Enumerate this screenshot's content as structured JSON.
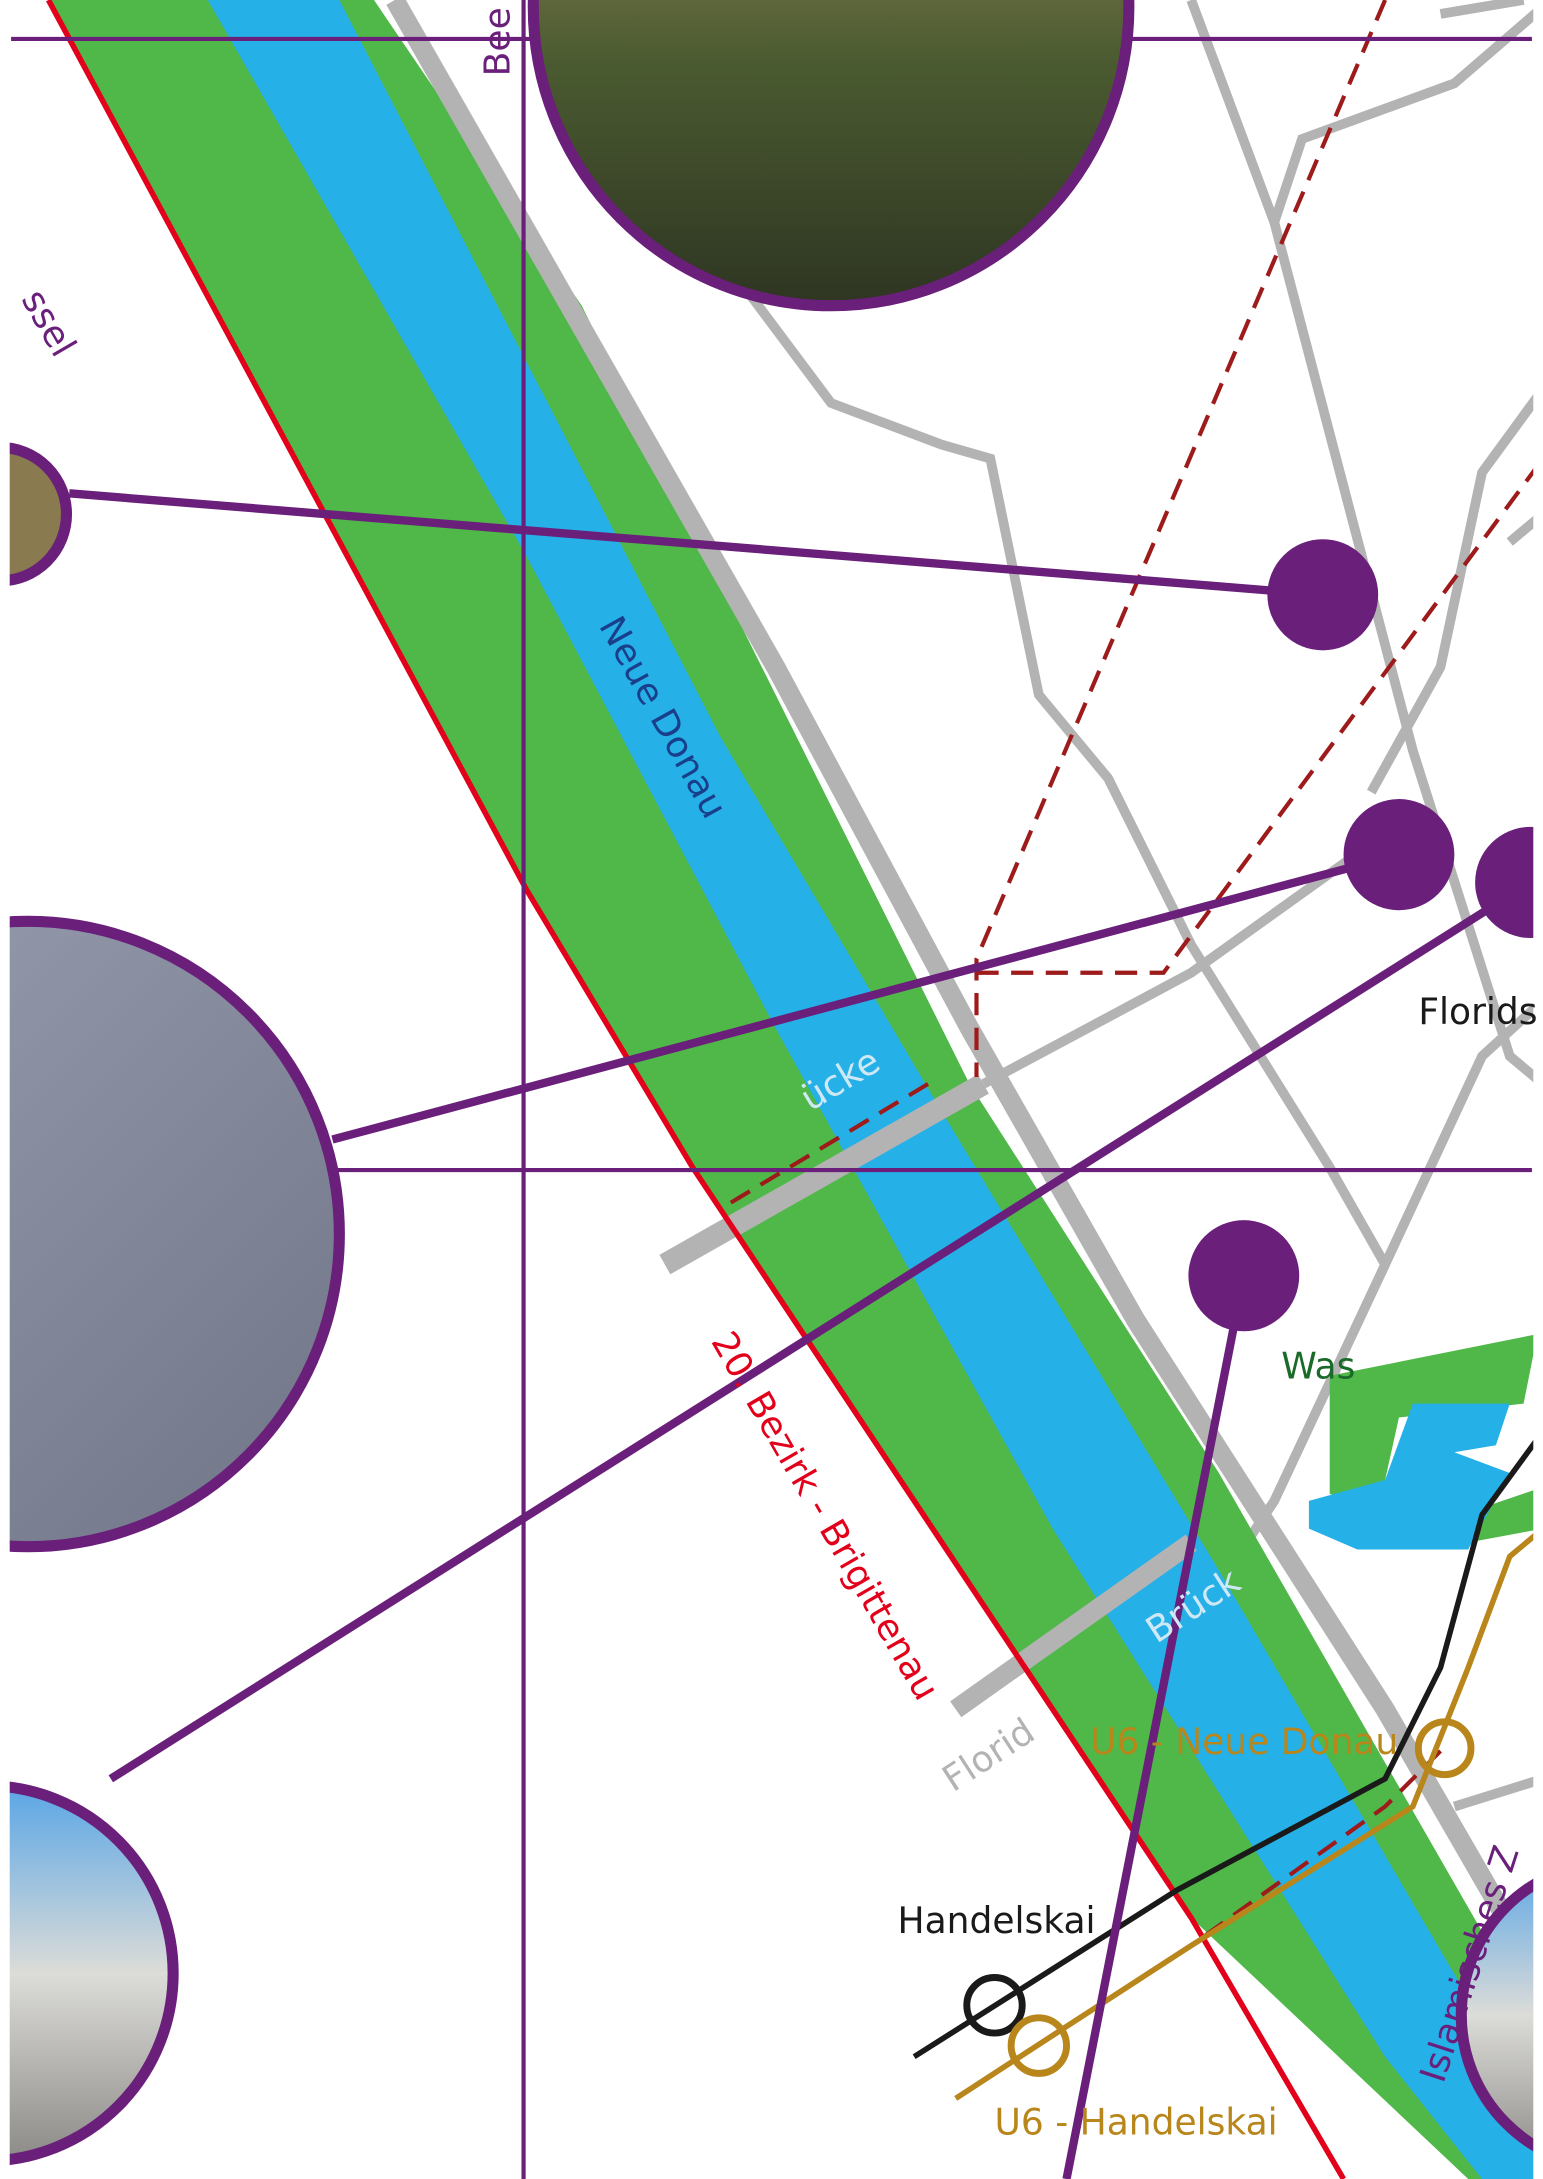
{
  "labels": {
    "street_top": "Bee",
    "circle_left_top": "ssel",
    "river": "Neue Donau",
    "bridge_upper": "ücke",
    "district": "20. Bezirk - Brigittenau",
    "bridge_lower": "Brück",
    "street_lower": "Florid",
    "place_right": "Florids",
    "water_right": "Was",
    "station_neue_donau": "U6 - Neue Donau",
    "station_handelskai_rail": "Handelskai",
    "station_handelskai_u6": "U6 - Handelskai",
    "islamic_centre": "Islamisches Z"
  }
}
